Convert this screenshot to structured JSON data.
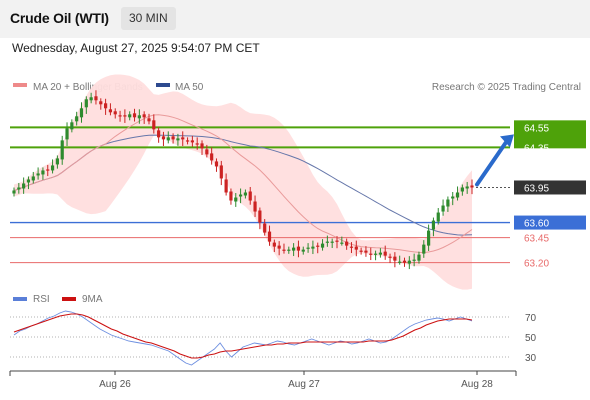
{
  "header": {
    "title": "Crude Oil (WTI)",
    "timeframe": "30 MIN",
    "datetime": "Wednesday, August 27, 2025 9:54:07 PM CET"
  },
  "legend": {
    "ma20": "MA 20 + Bollinger Bands",
    "ma50": "MA 50",
    "credit": "Research © 2025 Trading Central",
    "rsi": "RSI",
    "rsi_ma": "9MA"
  },
  "colors": {
    "resistance": "#4ea20a",
    "support_pivot": "#3b6fd6",
    "support": "#e86a6a",
    "current": "#333333",
    "arrow": "#2a6acb",
    "candle_up": "#2e8b2e",
    "candle_down": "#cc2222",
    "ma20": "#e99a9a",
    "ma50": "#6677aa",
    "bollinger_fill": "#ffdede",
    "rsi": "#6d8fe0",
    "rsi_ma": "#cc1111"
  },
  "chart_data": [
    {
      "type": "candlestick",
      "instrument": "Crude Oil (WTI)",
      "interval": "30 MIN",
      "x_ticks": [
        "Aug 26",
        "Aug 27",
        "Aug 28"
      ],
      "ylim": [
        63.0,
        64.75
      ],
      "levels": [
        {
          "value": 64.55,
          "label": "64.55",
          "kind": "resistance"
        },
        {
          "value": 64.35,
          "label": "64.35",
          "kind": "resistance"
        },
        {
          "value": 63.95,
          "label": "63.95",
          "kind": "current"
        },
        {
          "value": 63.6,
          "label": "63.60",
          "kind": "pivot"
        },
        {
          "value": 63.45,
          "label": "63.45",
          "kind": "support"
        },
        {
          "value": 63.2,
          "label": "63.20",
          "kind": "support"
        }
      ],
      "arrow": {
        "from": 63.98,
        "to": 64.48,
        "direction": "up"
      },
      "close": [
        63.92,
        63.95,
        63.99,
        64.03,
        64.06,
        64.09,
        64.12,
        64.13,
        64.17,
        64.24,
        64.42,
        64.54,
        64.6,
        64.66,
        64.74,
        64.83,
        64.85,
        64.82,
        64.78,
        64.74,
        64.7,
        64.68,
        64.66,
        64.66,
        64.68,
        64.65,
        64.67,
        64.65,
        64.61,
        64.53,
        64.45,
        64.43,
        64.45,
        64.43,
        64.44,
        64.43,
        64.41,
        64.4,
        64.38,
        64.34,
        64.28,
        64.22,
        64.16,
        64.04,
        63.9,
        63.82,
        63.85,
        63.88,
        63.9,
        63.82,
        63.71,
        63.6,
        63.5,
        63.41,
        63.36,
        63.34,
        63.32,
        63.33,
        63.35,
        63.32,
        63.33,
        63.35,
        63.36,
        63.36,
        63.39,
        63.41,
        63.41,
        63.41,
        63.4,
        63.37,
        63.35,
        63.33,
        63.31,
        63.3,
        63.28,
        63.29,
        63.3,
        63.27,
        63.25,
        63.22,
        63.21,
        63.2,
        63.22,
        63.23,
        63.28,
        63.38,
        63.52,
        63.62,
        63.7,
        63.77,
        63.83,
        63.86,
        63.9,
        63.95,
        63.96,
        63.95
      ]
    },
    {
      "type": "line",
      "title": "RSI",
      "ylim": [
        20,
        80
      ],
      "y_ticks": [
        30,
        50,
        70
      ],
      "series": [
        {
          "name": "RSI",
          "values": [
            52,
            56,
            58,
            61,
            63,
            66,
            69,
            71,
            74,
            76,
            75,
            73,
            70,
            66,
            62,
            58,
            55,
            52,
            50,
            48,
            46,
            45,
            44,
            43,
            42,
            40,
            38,
            36,
            32,
            28,
            24,
            22,
            26,
            30,
            34,
            38,
            44,
            36,
            30,
            35,
            40,
            42,
            44,
            43,
            42,
            44,
            46,
            45,
            43,
            42,
            44,
            46,
            48,
            46,
            44,
            42,
            44,
            46,
            45,
            43,
            44,
            46,
            48,
            46,
            44,
            45,
            48,
            52,
            56,
            60,
            63,
            65,
            67,
            68,
            69,
            68,
            66,
            68,
            70,
            68,
            66
          ]
        },
        {
          "name": "9MA",
          "values": [
            55,
            57,
            59,
            61,
            63,
            65,
            67,
            69,
            71,
            72,
            73,
            73,
            72,
            70,
            67,
            64,
            61,
            58,
            56,
            53,
            51,
            49,
            47,
            45,
            44,
            42,
            40,
            38,
            36,
            33,
            31,
            29,
            29,
            30,
            32,
            33,
            35,
            36,
            36,
            37,
            38,
            39,
            40,
            41,
            42,
            42,
            43,
            43,
            44,
            44,
            44,
            45,
            45,
            45,
            45,
            45,
            45,
            45,
            45,
            45,
            45,
            45,
            46,
            46,
            46,
            46,
            47,
            49,
            51,
            54,
            57,
            59,
            62,
            64,
            66,
            67,
            68,
            68,
            68,
            68,
            67
          ]
        }
      ]
    }
  ]
}
